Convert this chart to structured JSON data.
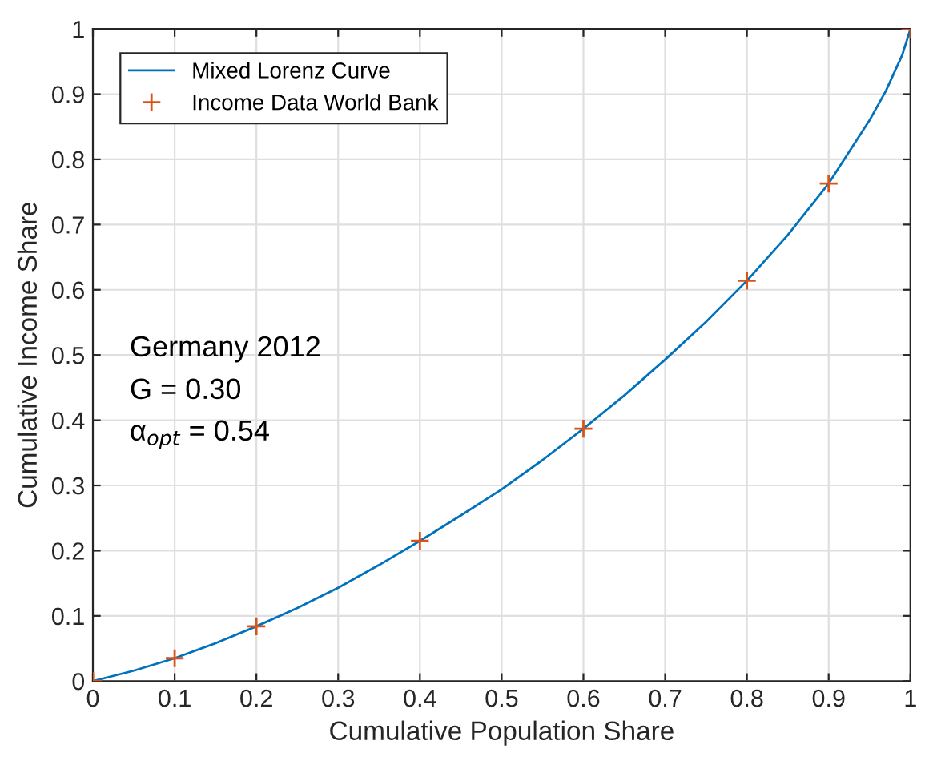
{
  "chart_data": {
    "type": "line",
    "xlabel": "Cumulative Population Share",
    "ylabel": "Cumulative Income Share",
    "series": [
      {
        "name": "Mixed Lorenz Curve",
        "color": "#0072bd",
        "marker": "none",
        "line_style": "solid",
        "x": [
          0,
          0.05,
          0.1,
          0.15,
          0.2,
          0.25,
          0.3,
          0.35,
          0.4,
          0.45,
          0.5,
          0.55,
          0.6,
          0.65,
          0.7,
          0.75,
          0.8,
          0.85,
          0.9,
          0.95,
          0.97,
          0.99,
          1
        ],
        "values": [
          0,
          0.016,
          0.035,
          0.058,
          0.084,
          0.112,
          0.143,
          0.178,
          0.215,
          0.254,
          0.294,
          0.339,
          0.387,
          0.438,
          0.493,
          0.551,
          0.614,
          0.684,
          0.763,
          0.86,
          0.905,
          0.96,
          1.0
        ]
      },
      {
        "name": "Income Data World Bank",
        "type": "scatter",
        "color": "#d95319",
        "marker": "cross",
        "x": [
          0,
          0.1,
          0.2,
          0.4,
          0.6,
          0.8,
          0.9,
          1
        ],
        "values": [
          0,
          0.035,
          0.084,
          0.215,
          0.387,
          0.614,
          0.763,
          1.0
        ]
      }
    ],
    "annotations": [
      "Germany 2012",
      "G = 0.30",
      "α$_{opt}$ = 0.54"
    ],
    "xlim": [
      0,
      1
    ],
    "ylim": [
      0,
      1
    ],
    "xticks": [
      0,
      0.1,
      0.2,
      0.3,
      0.4,
      0.5,
      0.6,
      0.7,
      0.8,
      0.9,
      1
    ],
    "yticks": [
      0,
      0.1,
      0.2,
      0.3,
      0.4,
      0.5,
      0.6,
      0.7,
      0.8,
      0.9,
      1
    ],
    "grid": true,
    "legend": "top left"
  }
}
